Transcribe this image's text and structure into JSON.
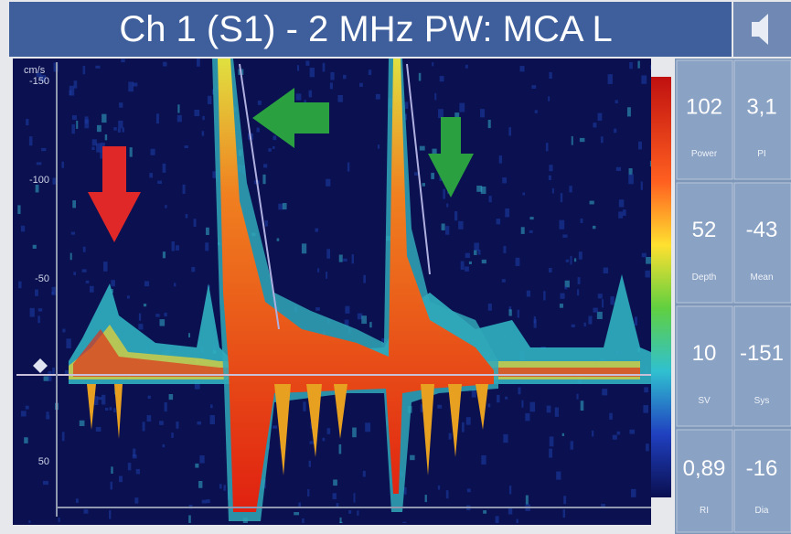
{
  "header": {
    "title": "Ch 1 (S1) - 2 MHz PW: MCA L"
  },
  "scale": {
    "unit": "cm/s",
    "labels": [
      "-150",
      "-100",
      "-50",
      "50"
    ]
  },
  "readouts": [
    {
      "value": "102",
      "label": "Power"
    },
    {
      "value": "3,1",
      "label": "PI"
    },
    {
      "value": "52",
      "label": "Depth"
    },
    {
      "value": "-43",
      "label": "Mean"
    },
    {
      "value": "10",
      "label": "SV"
    },
    {
      "value": "-151",
      "label": "Sys"
    },
    {
      "value": "0,89",
      "label": "RI"
    },
    {
      "value": "-16",
      "label": "Dia"
    }
  ]
}
